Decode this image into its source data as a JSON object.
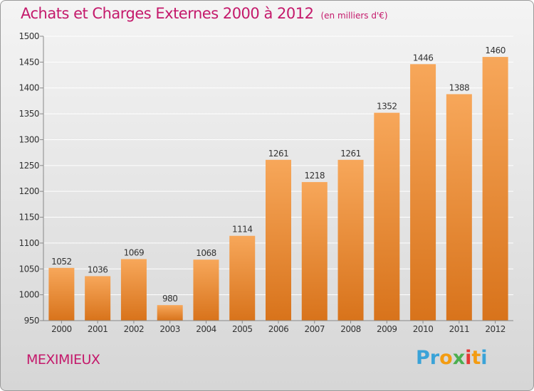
{
  "title": "Achats et Charges Externes 2000 à 2012",
  "subtitle": "(en milliers d'€)",
  "city": "MEXIMIEUX",
  "logo": {
    "text": "Proxiti",
    "letters": [
      "P",
      "r",
      "o",
      "x",
      "i",
      "t",
      "i"
    ],
    "colors": [
      "#3aa3d8",
      "#3aa3d8",
      "#f39c12",
      "#4caf50",
      "#e53935",
      "#f39c12",
      "#3aa3d8"
    ]
  },
  "colors": {
    "title": "#c4196b",
    "bar_top": "#f7a75a",
    "bar_bottom": "#d8731b",
    "axis": "#888888",
    "grid": "#ffffff"
  },
  "chart_data": {
    "type": "bar",
    "categories": [
      "2000",
      "2001",
      "2002",
      "2003",
      "2004",
      "2005",
      "2006",
      "2007",
      "2008",
      "2009",
      "2010",
      "2011",
      "2012"
    ],
    "values": [
      1052,
      1036,
      1069,
      980,
      1068,
      1114,
      1261,
      1218,
      1261,
      1352,
      1446,
      1388,
      1460
    ],
    "ylim": [
      950,
      1500
    ],
    "yticks": [
      950,
      1000,
      1050,
      1100,
      1150,
      1200,
      1250,
      1300,
      1350,
      1400,
      1450,
      1500
    ],
    "grid": true,
    "title": "Achats et Charges Externes 2000 à 2012",
    "xlabel": "",
    "ylabel": ""
  }
}
